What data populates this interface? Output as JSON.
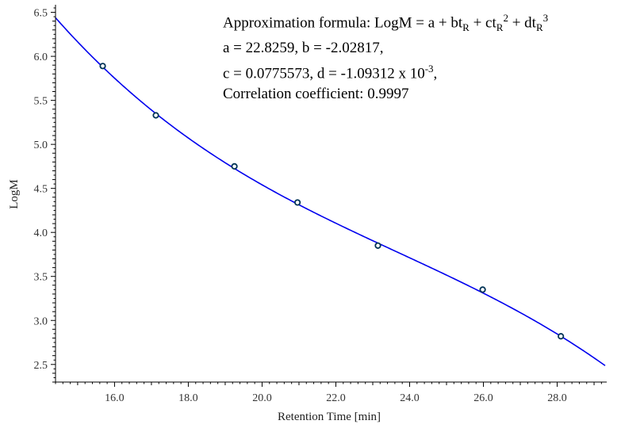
{
  "chart_data": {
    "type": "scatter",
    "xlabel": "Retention Time [min]",
    "ylabel": "LogM",
    "xlim": [
      14.4,
      29.3
    ],
    "ylim": [
      2.3,
      6.55
    ],
    "x_ticks": [
      16.0,
      18.0,
      20.0,
      22.0,
      24.0,
      26.0,
      28.0
    ],
    "y_ticks": [
      2.5,
      3.0,
      3.5,
      4.0,
      4.5,
      5.0,
      5.5,
      6.0,
      6.5
    ],
    "points": [
      {
        "x": 15.68,
        "y": 5.89
      },
      {
        "x": 17.12,
        "y": 5.33
      },
      {
        "x": 19.25,
        "y": 4.75
      },
      {
        "x": 20.96,
        "y": 4.34
      },
      {
        "x": 23.14,
        "y": 3.85
      },
      {
        "x": 25.98,
        "y": 3.35
      },
      {
        "x": 28.1,
        "y": 2.82
      }
    ],
    "fit": {
      "formula": "LogM = a + bt_R + ct_R^2 + dt_R^3",
      "a": 22.8259,
      "b": -2.02817,
      "c": 0.0775573,
      "d": -0.00109312
    },
    "grid": false,
    "colors": {
      "curve": "#0000ee",
      "marker_edge": "#003355",
      "axis": "#000000"
    }
  },
  "annotation": {
    "line1_prefix": "Approximation formula: LogM = a + bt",
    "sub_R": "R",
    "plus_ct": " + ct",
    "sup_2": "2",
    "plus_dt": " + dt",
    "sup_3": "3",
    "line2": "a = 22.8259, b = -2.02817,",
    "line3_prefix": "c = 0.0775573, d = -1.09312 x 10",
    "line3_exp": "-3",
    "line3_suffix": ",",
    "line4": "Correlation coefficient: 0.9997"
  }
}
